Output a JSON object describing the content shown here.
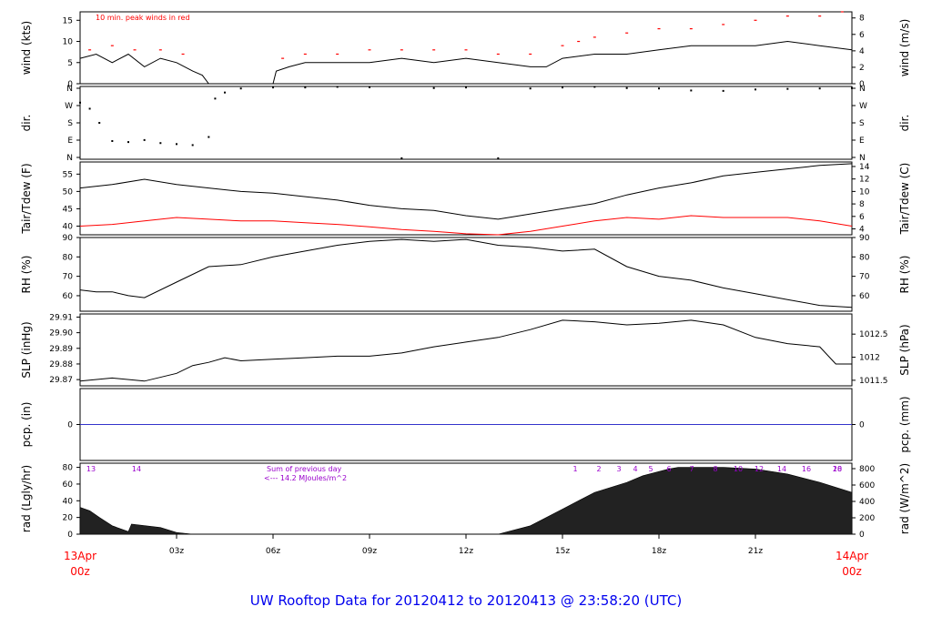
{
  "title": "UW Rooftop Data for 20120412  to  20120413 @ 23:58:20  (UTC)",
  "colors": {
    "text": "#000000",
    "red": "#ff0000",
    "purple": "#9900cc",
    "blue": "#0000ee",
    "precip_line": "#3333cc"
  },
  "chart_data": {
    "type": "line",
    "x_axis": {
      "ticks": [
        "03z",
        "06z",
        "09z",
        "12z",
        "15z",
        "18z",
        "21z"
      ],
      "start_label": [
        "13Apr",
        "00z"
      ],
      "end_label": [
        "14Apr",
        "00z"
      ],
      "range_hours": [
        0,
        24
      ]
    },
    "panels": [
      {
        "id": "wind",
        "ylabel_left": "wind (kts)",
        "ylabel_right": "wind (m/s)",
        "ylim": [
          0,
          17
        ],
        "left_ticks": [
          "0",
          "5",
          "10",
          "15"
        ],
        "right_ticks": [
          "0",
          "2",
          "4",
          "6",
          "8"
        ],
        "annotation": "10 min. peak winds in red",
        "series": [
          {
            "role": "wind",
            "x": [
              0,
              0.5,
              1,
              1.5,
              2,
              2.5,
              3,
              3.5,
              3.8,
              4,
              6,
              6.1,
              6.5,
              7,
              8,
              9,
              10,
              11,
              12,
              13,
              14,
              14.5,
              15,
              16,
              17,
              18,
              19,
              20,
              21,
              22,
              23,
              24
            ],
            "values": [
              6,
              7,
              5,
              7,
              4,
              6,
              5,
              3,
              2,
              0,
              0,
              3,
              4,
              5,
              5,
              5,
              6,
              5,
              6,
              5,
              4,
              4,
              6,
              7,
              7,
              8,
              9,
              9,
              9,
              10,
              9,
              8
            ]
          },
          {
            "role": "gust",
            "x": [
              0.3,
              1,
              1.7,
              2.5,
              3.2,
              6.3,
              7,
              8,
              9,
              10,
              11,
              12,
              13,
              14,
              15,
              15.5,
              16,
              17,
              18,
              19,
              20,
              21,
              22,
              23,
              23.7
            ],
            "values": [
              8,
              9,
              8,
              8,
              7,
              6,
              7,
              7,
              8,
              8,
              8,
              8,
              7,
              7,
              9,
              10,
              11,
              12,
              13,
              13,
              14,
              15,
              16,
              16,
              17
            ]
          }
        ]
      },
      {
        "id": "dir",
        "ylabel_left": "dir.",
        "ylabel_right": "dir.",
        "ylim": [
          0,
          360
        ],
        "left_ticks": [
          "N",
          "E",
          "S",
          "W",
          "N"
        ],
        "right_ticks": [
          "N",
          "E",
          "S",
          "W",
          "N"
        ],
        "series": [
          {
            "role": "direction",
            "x": [
              0,
              0.3,
              0.6,
              1,
              1.5,
              2,
              2.5,
              3,
              3.5,
              4,
              4.2,
              4.5,
              5,
              6,
              7,
              8,
              9,
              10,
              11,
              12,
              13,
              14,
              15,
              16,
              17,
              18,
              19,
              20,
              21,
              22,
              23,
              24
            ],
            "values": [
              280,
              250,
              180,
              90,
              85,
              95,
              80,
              75,
              70,
              110,
              300,
              330,
              350,
              355,
              355,
              358,
              356,
              5,
              352,
              355,
              5,
              350,
              355,
              358,
              352,
              350,
              340,
              338,
              345,
              348,
              350,
              352
            ]
          }
        ]
      },
      {
        "id": "temp",
        "ylabel_left": "Tair/Tdew (F)",
        "ylabel_right": "Tair/Tdew (C)",
        "ylim": [
          37.5,
          58.5
        ],
        "left_ticks": [
          "40",
          "45",
          "50",
          "55"
        ],
        "right_ticks": [
          "4",
          "6",
          "8",
          "10",
          "12",
          "14"
        ],
        "series": [
          {
            "role": "tair",
            "x": [
              0,
              1,
              2,
              3,
              4,
              5,
              6,
              7,
              8,
              9,
              10,
              11,
              12,
              13,
              14,
              15,
              16,
              17,
              18,
              19,
              20,
              21,
              22,
              23,
              24
            ],
            "values": [
              51,
              52,
              53.5,
              52,
              51,
              50,
              49.5,
              48.5,
              47.5,
              46,
              45,
              44.5,
              43,
              42,
              43.5,
              45,
              46.5,
              49,
              51,
              52.5,
              54.5,
              55.5,
              56.5,
              57.5,
              58
            ]
          },
          {
            "role": "tdew",
            "x": [
              0,
              1,
              2,
              3,
              4,
              5,
              6,
              7,
              8,
              9,
              10,
              11,
              12,
              13,
              14,
              15,
              16,
              17,
              18,
              19,
              20,
              21,
              22,
              23,
              24
            ],
            "values": [
              40,
              40.5,
              41.5,
              42.5,
              42,
              41.5,
              41.5,
              41,
              40.5,
              39.8,
              39,
              38.5,
              37.8,
              37.5,
              38.5,
              40,
              41.5,
              42.5,
              42,
              43,
              42.5,
              42.5,
              42.5,
              41.5,
              40
            ]
          }
        ]
      },
      {
        "id": "rh",
        "ylabel_left": "RH (%)",
        "ylabel_right": "RH (%)",
        "ylim": [
          52,
          90
        ],
        "left_ticks": [
          "60",
          "70",
          "80",
          "90"
        ],
        "right_ticks": [
          "60",
          "70",
          "80",
          "90"
        ],
        "series": [
          {
            "role": "rh",
            "x": [
              0,
              0.5,
              1,
              1.5,
              2,
              3,
              4,
              5,
              6,
              7,
              8,
              9,
              10,
              11,
              12,
              13,
              14,
              15,
              16,
              17,
              18,
              19,
              20,
              21,
              22,
              23,
              24
            ],
            "values": [
              63,
              62,
              62,
              60,
              59,
              67,
              75,
              76,
              80,
              83,
              86,
              88,
              89,
              88,
              89,
              86,
              85,
              83,
              84,
              75,
              70,
              68,
              64,
              61,
              58,
              55,
              54
            ]
          }
        ]
      },
      {
        "id": "slp",
        "ylabel_left": "SLP (inHg)",
        "ylabel_right": "SLP (hPa)",
        "ylim": [
          29.866,
          29.912
        ],
        "left_ticks": [
          "29.87",
          "29.88",
          "29.89",
          "29.90",
          "29.91"
        ],
        "right_ticks": [
          "1011.5",
          "1012",
          "1012.5"
        ],
        "series": [
          {
            "role": "slp",
            "x": [
              0,
              1,
              2,
              3,
              3.5,
              4,
              4.5,
              5,
              6,
              7,
              8,
              9,
              10,
              11,
              12,
              13,
              14,
              15,
              16,
              17,
              18,
              19,
              20,
              21,
              22,
              23,
              23.5,
              24
            ],
            "values": [
              29.869,
              29.871,
              29.869,
              29.874,
              29.879,
              29.881,
              29.884,
              29.882,
              29.883,
              29.884,
              29.885,
              29.885,
              29.887,
              29.891,
              29.894,
              29.897,
              29.902,
              29.908,
              29.907,
              29.905,
              29.906,
              29.908,
              29.905,
              29.897,
              29.893,
              29.891,
              29.88,
              29.88
            ]
          }
        ]
      },
      {
        "id": "pcp",
        "ylabel_left": "pcp. (in)",
        "ylabel_right": "pcp. (mm)",
        "ylim": [
          -1,
          1
        ],
        "left_ticks": [
          "0"
        ],
        "right_ticks": [
          "0"
        ],
        "series": [
          {
            "role": "precip",
            "x": [
              0,
              24
            ],
            "values": [
              0,
              0
            ]
          }
        ]
      },
      {
        "id": "rad",
        "ylabel_left": "rad (Lgly/hr)",
        "ylabel_right": "rad (W/m^2)",
        "ylim": [
          0,
          85
        ],
        "left_ticks": [
          "0",
          "20",
          "40",
          "60",
          "80"
        ],
        "right_ticks": [
          "0",
          "200",
          "400",
          "600",
          "800"
        ],
        "annotation_lines": [
          "Sum of previous day",
          "<--- 14.2 MJoules/m^2"
        ],
        "hour_labels": [
          "13",
          "14",
          "1",
          "2",
          "3",
          "4",
          "5",
          "6",
          "7",
          "8",
          "10",
          "12",
          "14",
          "16",
          "18",
          "20"
        ],
        "series": [
          {
            "role": "radiation",
            "x": [
              0,
              0.3,
              0.6,
              1,
              1.5,
              1.6,
              2.5,
              3,
              3.5,
              13,
              14,
              15,
              16,
              17,
              17.5,
              18,
              18.3,
              18.6,
              19,
              20,
              21,
              22,
              23,
              24
            ],
            "values": [
              32,
              28,
              20,
              10,
              3,
              12,
              8,
              2,
              0,
              0,
              10,
              30,
              50,
              62,
              70,
              75,
              78,
              80,
              80,
              80,
              78,
              72,
              62,
              50
            ]
          }
        ]
      }
    ]
  }
}
